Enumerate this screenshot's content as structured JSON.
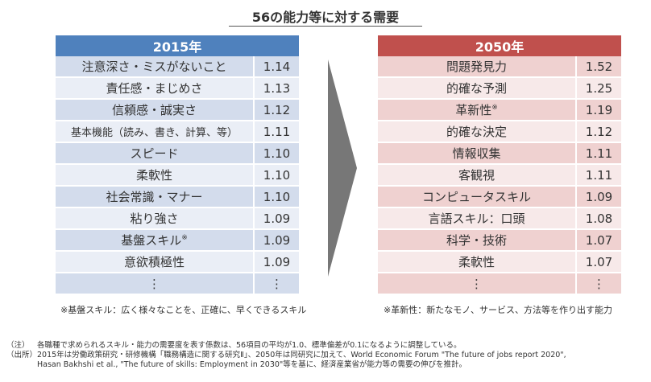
{
  "title": "56の能力等に対する需要",
  "table_2015": {
    "header": "2015年",
    "rows": [
      {
        "name": "注意深さ・ミスがないこと",
        "value": "1.14",
        "mark": ""
      },
      {
        "name": "責任感・まじめさ",
        "value": "1.13",
        "mark": ""
      },
      {
        "name": "信頼感・誠実さ",
        "value": "1.12",
        "mark": ""
      },
      {
        "name": "基本機能（読み、書き、計算、等）",
        "value": "1.11",
        "mark": ""
      },
      {
        "name": "スピード",
        "value": "1.10",
        "mark": ""
      },
      {
        "name": "柔軟性",
        "value": "1.10",
        "mark": ""
      },
      {
        "name": "社会常識・マナー",
        "value": "1.10",
        "mark": ""
      },
      {
        "name": "粘り強さ",
        "value": "1.09",
        "mark": ""
      },
      {
        "name": "基盤スキル",
        "value": "1.09",
        "mark": "※"
      },
      {
        "name": "意欲積極性",
        "value": "1.09",
        "mark": ""
      },
      {
        "name": "⋮",
        "value": "⋮",
        "mark": ""
      }
    ],
    "note": "※基盤スキル：広く様々なことを、正確に、早くできるスキル"
  },
  "table_2050": {
    "header": "2050年",
    "rows": [
      {
        "name": "問題発見力",
        "value": "1.52",
        "mark": ""
      },
      {
        "name": "的確な予測",
        "value": "1.25",
        "mark": ""
      },
      {
        "name": "革新性",
        "value": "1.19",
        "mark": "※"
      },
      {
        "name": "的確な決定",
        "value": "1.12",
        "mark": ""
      },
      {
        "name": "情報収集",
        "value": "1.11",
        "mark": ""
      },
      {
        "name": "客観視",
        "value": "1.11",
        "mark": ""
      },
      {
        "name": "コンピュータスキル",
        "value": "1.09",
        "mark": ""
      },
      {
        "name": "言語スキル：口頭",
        "value": "1.08",
        "mark": ""
      },
      {
        "name": "科学・技術",
        "value": "1.07",
        "mark": ""
      },
      {
        "name": "柔軟性",
        "value": "1.07",
        "mark": ""
      },
      {
        "name": "⋮",
        "value": "⋮",
        "mark": ""
      }
    ],
    "note": "※革新性：新たなモノ、サービス、方法等を作り出す能力"
  },
  "footnotes": [
    {
      "label": "（注）",
      "text": "各職種で求められるスキル・能力の需要度を表す係数は、56項目の平均が1.0、標準偏差が0.1になるように調整している。"
    },
    {
      "label": "（出所）",
      "text": "2015年は労働政策研究・研修機構「職務構造に関する研究Ⅱ」、2050年は同研究に加えて、World Economic Forum \"The future of jobs report 2020\","
    },
    {
      "label": "",
      "text": "Hasan Bakhshi et al., \"The future of skills: Employment in 2030\"等を基に、経済産業省が能力等の需要の伸びを推計。"
    }
  ],
  "colors": {
    "header_2015": "#4f81bd",
    "header_2050": "#c0504d",
    "arrow": "#777777"
  }
}
